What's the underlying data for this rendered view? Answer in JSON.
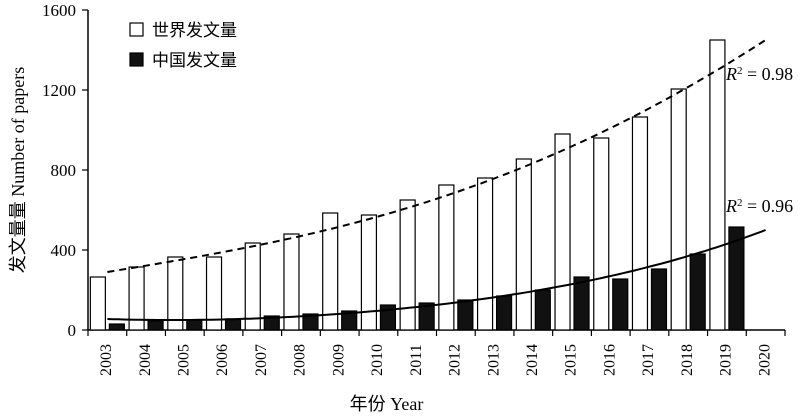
{
  "chart_data": {
    "type": "bar",
    "xlabel": "年份 Year",
    "ylabel": "发文量量 Number of papers",
    "ylim": [
      0,
      1600
    ],
    "yticks": [
      0,
      400,
      800,
      1200,
      1600
    ],
    "categories": [
      "2003",
      "2004",
      "2005",
      "2006",
      "2007",
      "2008",
      "2009",
      "2010",
      "2011",
      "2012",
      "2013",
      "2014",
      "2015",
      "2016",
      "2017",
      "2018",
      "2019",
      "2020"
    ],
    "series": [
      {
        "name": "世界发文量",
        "style": "outline",
        "values": [
          265,
          315,
          365,
          365,
          435,
          480,
          585,
          575,
          650,
          725,
          760,
          855,
          980,
          960,
          1065,
          1205,
          1450,
          null
        ]
      },
      {
        "name": "中国发文量",
        "style": "filled",
        "values": [
          30,
          45,
          50,
          55,
          70,
          80,
          95,
          125,
          135,
          150,
          170,
          200,
          265,
          255,
          305,
          380,
          515,
          null
        ]
      }
    ],
    "trendlines": [
      {
        "series": "世界发文量",
        "kind": "polynomial",
        "line_style": "dashed",
        "label_prefix": "R",
        "label_sup": "2",
        "label_value": " = 0.98",
        "points": [
          [
            2003,
            290
          ],
          [
            2006,
            390
          ],
          [
            2011,
            625
          ],
          [
            2016,
            1010
          ],
          [
            2020,
            1450
          ]
        ]
      },
      {
        "series": "中国发文量",
        "kind": "polynomial",
        "line_style": "solid",
        "label_prefix": "R",
        "label_sup": "2",
        "label_value": " = 0.96",
        "points": [
          [
            2003,
            55
          ],
          [
            2005,
            50
          ],
          [
            2011,
            115
          ],
          [
            2016,
            270
          ],
          [
            2020,
            500
          ]
        ]
      }
    ],
    "legend": "top-left",
    "grid": false
  }
}
